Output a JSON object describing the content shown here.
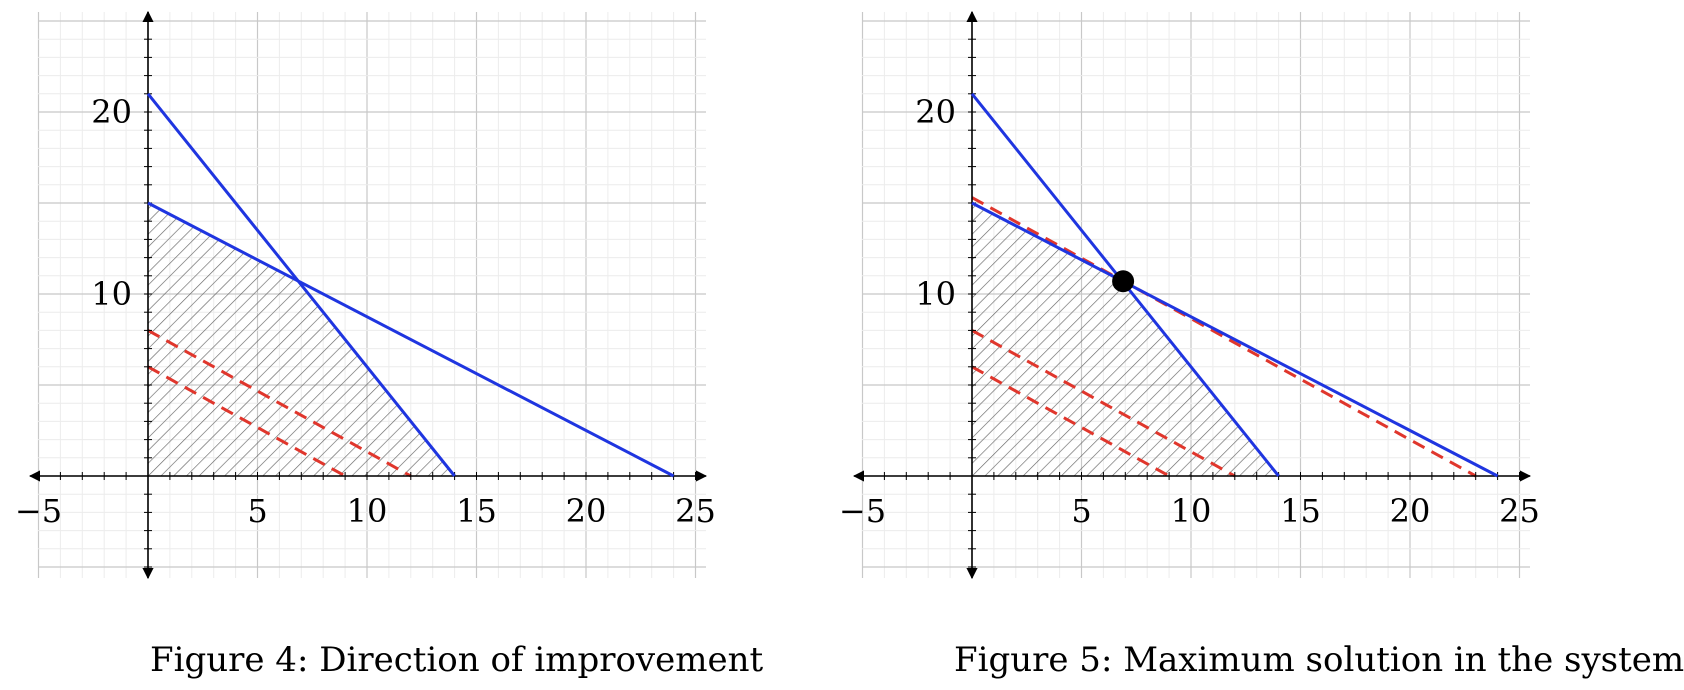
{
  "colors": {
    "constraint": "#1f35e0",
    "objective": "#e0362c",
    "hatch": "#666666",
    "grid_major": "#c8c8c8",
    "grid_minor": "#ececec",
    "axis": "#000000",
    "optimum": "#000000"
  },
  "chart_data": [
    {
      "type": "line",
      "title": "Figure 4: Direction of improvement",
      "xlim": [
        -5,
        25
      ],
      "ylim": [
        -5,
        25
      ],
      "x_ticks": [
        -5,
        5,
        10,
        15,
        20,
        25
      ],
      "y_ticks": [
        10,
        20
      ],
      "x_tick_labels": [
        "−5",
        "5",
        "10",
        "15",
        "20",
        "25"
      ],
      "y_tick_labels": [
        "10",
        "20"
      ],
      "grid": true,
      "series": [
        {
          "kind": "constraint",
          "points": [
            [
              0,
              21
            ],
            [
              14,
              0
            ]
          ]
        },
        {
          "kind": "constraint",
          "points": [
            [
              0,
              15
            ],
            [
              24,
              0
            ]
          ]
        },
        {
          "kind": "objective",
          "style": "dashed",
          "points": [
            [
              0,
              8
            ],
            [
              12,
              0
            ]
          ]
        },
        {
          "kind": "objective",
          "style": "dashed",
          "points": [
            [
              0,
              6
            ],
            [
              9,
              0
            ]
          ]
        }
      ],
      "feasible_region": {
        "fill": "hatched",
        "vertices": [
          [
            0,
            0
          ],
          [
            0,
            15
          ],
          [
            6.9,
            10.7
          ],
          [
            14,
            0
          ]
        ]
      },
      "optimum": null
    },
    {
      "type": "line",
      "title": "Figure 5: Maximum solution in the system",
      "xlim": [
        -5,
        25
      ],
      "ylim": [
        -5,
        25
      ],
      "x_ticks": [
        -5,
        5,
        10,
        15,
        20,
        25
      ],
      "y_ticks": [
        10,
        20
      ],
      "x_tick_labels": [
        "−5",
        "5",
        "10",
        "15",
        "20",
        "25"
      ],
      "y_tick_labels": [
        "10",
        "20"
      ],
      "grid": true,
      "series": [
        {
          "kind": "constraint",
          "points": [
            [
              0,
              21
            ],
            [
              14,
              0
            ]
          ]
        },
        {
          "kind": "constraint",
          "points": [
            [
              0,
              15
            ],
            [
              24,
              0
            ]
          ]
        },
        {
          "kind": "objective",
          "style": "dashed",
          "points": [
            [
              0,
              15.3
            ],
            [
              23,
              0
            ]
          ]
        },
        {
          "kind": "objective",
          "style": "dashed",
          "points": [
            [
              0,
              8
            ],
            [
              12,
              0
            ]
          ]
        },
        {
          "kind": "objective",
          "style": "dashed",
          "points": [
            [
              0,
              6
            ],
            [
              9,
              0
            ]
          ]
        }
      ],
      "feasible_region": {
        "fill": "hatched",
        "vertices": [
          [
            0,
            0
          ],
          [
            0,
            15
          ],
          [
            6.9,
            10.7
          ],
          [
            14,
            0
          ]
        ]
      },
      "optimum": {
        "x": 6.9,
        "y": 10.7
      }
    }
  ]
}
